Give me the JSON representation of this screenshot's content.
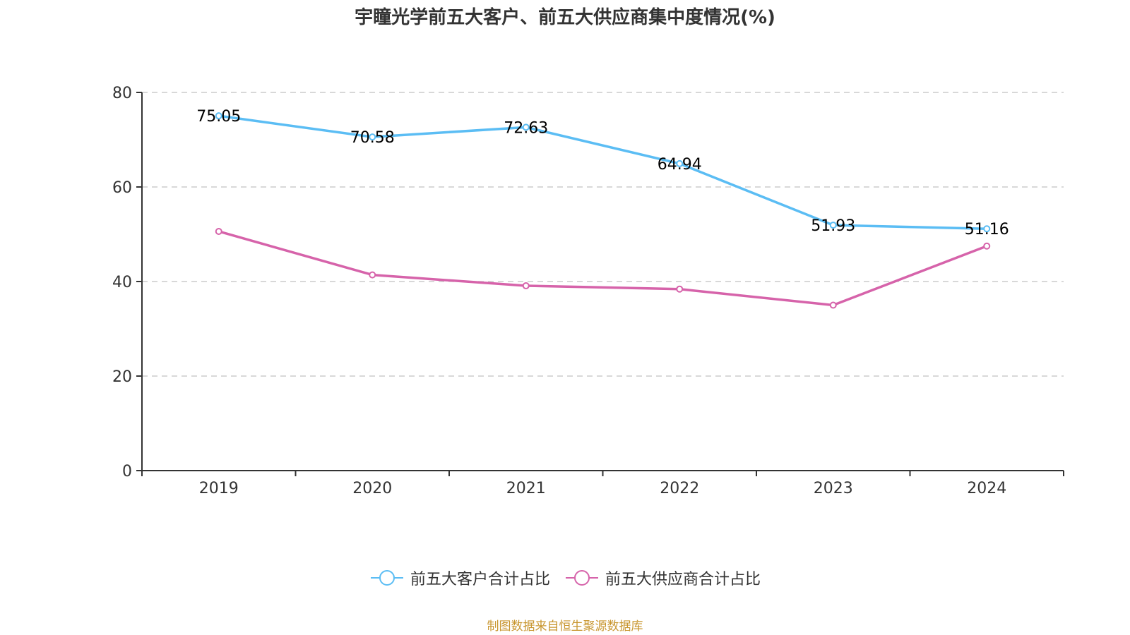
{
  "chart_data": {
    "type": "line",
    "title": "宇瞳光学前五大客户、前五大供应商集中度情况(%)",
    "xlabel": "",
    "ylabel": "",
    "categories": [
      "2019",
      "2020",
      "2021",
      "2022",
      "2023",
      "2024"
    ],
    "ylim": [
      0,
      80
    ],
    "yticks": [
      0,
      20,
      40,
      60,
      80
    ],
    "grid": true,
    "legend_position": "bottom",
    "series": [
      {
        "name": "前五大客户合计占比",
        "color": "#5bbdf4",
        "values": [
          75.05,
          70.58,
          72.63,
          64.94,
          51.93,
          51.16
        ],
        "labels": [
          "75.05",
          "70.58",
          "72.63",
          "64.94",
          "51.93",
          "51.16"
        ],
        "show_labels": true
      },
      {
        "name": "前五大供应商合计占比",
        "color": "#d663aa",
        "values": [
          50.6,
          41.4,
          39.1,
          38.4,
          35.0,
          47.5
        ],
        "show_labels": false
      }
    ]
  },
  "source_note": "制图数据来自恒生聚源数据库"
}
